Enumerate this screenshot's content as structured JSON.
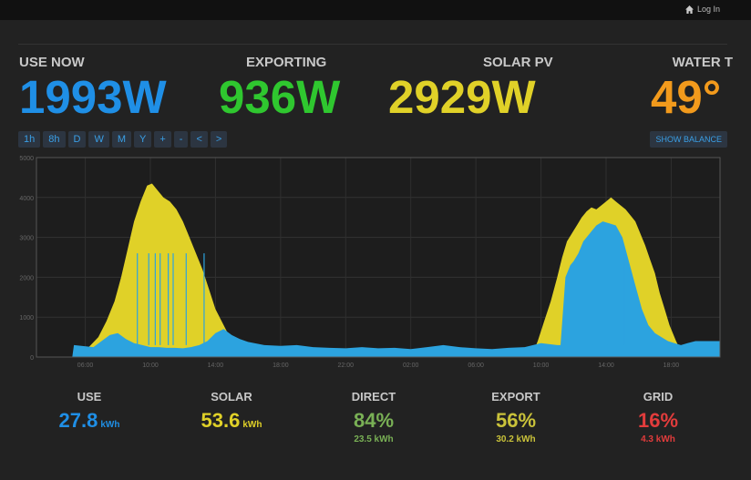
{
  "header": {
    "login_label": "Log In"
  },
  "stats": [
    {
      "label": "USE NOW",
      "value": "1993W",
      "color": "#1f8fe6"
    },
    {
      "label": "EXPORTING",
      "value": "936W",
      "color": "#2fc72f"
    },
    {
      "label": "SOLAR PV",
      "value": "2929W",
      "color": "#e0d128"
    },
    {
      "label": "WATER T",
      "value": "49°",
      "color": "#f29a1c"
    }
  ],
  "toolbar": {
    "buttons": [
      "1h",
      "8h",
      "D",
      "W",
      "M",
      "Y",
      "+",
      "-",
      "<",
      ">"
    ],
    "show_balance": "SHOW BALANCE"
  },
  "chart_data": {
    "type": "area",
    "ylim": [
      0,
      5000
    ],
    "yticks": [
      "0",
      "1000",
      "2000",
      "3000",
      "4000",
      "5000"
    ],
    "xticks": [
      "06:00",
      "10:00",
      "14:00",
      "18:00",
      "22:00",
      "02:00",
      "06:00",
      "10:00",
      "14:00",
      "18:00"
    ],
    "series": [
      {
        "color": "#e0d128",
        "points": [
          [
            0.0,
            0
          ],
          [
            2.4,
            0
          ],
          [
            3.1,
            200
          ],
          [
            3.8,
            500
          ],
          [
            4.3,
            900
          ],
          [
            4.8,
            1400
          ],
          [
            5.2,
            2000
          ],
          [
            5.6,
            2700
          ],
          [
            6.0,
            3400
          ],
          [
            6.4,
            3900
          ],
          [
            6.8,
            4300
          ],
          [
            7.1,
            4350
          ],
          [
            7.4,
            4200
          ],
          [
            7.8,
            4000
          ],
          [
            8.2,
            3900
          ],
          [
            8.6,
            3700
          ],
          [
            9.0,
            3400
          ],
          [
            9.4,
            3000
          ],
          [
            9.8,
            2600
          ],
          [
            10.2,
            2200
          ],
          [
            10.6,
            1700
          ],
          [
            11.0,
            1200
          ],
          [
            11.5,
            800
          ],
          [
            12.0,
            400
          ],
          [
            12.5,
            250
          ],
          [
            13.0,
            0
          ],
          [
            30.4,
            0
          ],
          [
            30.8,
            400
          ],
          [
            31.2,
            900
          ],
          [
            31.6,
            1400
          ],
          [
            32.0,
            2000
          ],
          [
            32.3,
            2500
          ],
          [
            32.6,
            2900
          ],
          [
            32.9,
            3100
          ],
          [
            33.2,
            3300
          ],
          [
            33.5,
            3500
          ],
          [
            33.8,
            3650
          ],
          [
            34.1,
            3750
          ],
          [
            34.4,
            3700
          ],
          [
            34.7,
            3800
          ],
          [
            35.0,
            3900
          ],
          [
            35.3,
            4000
          ],
          [
            35.6,
            3900
          ],
          [
            35.9,
            3800
          ],
          [
            36.2,
            3700
          ],
          [
            36.5,
            3550
          ],
          [
            36.8,
            3400
          ],
          [
            37.1,
            3100
          ],
          [
            37.4,
            2800
          ],
          [
            37.7,
            2450
          ],
          [
            38.0,
            2100
          ],
          [
            38.3,
            1600
          ],
          [
            38.6,
            1200
          ],
          [
            38.9,
            800
          ],
          [
            39.3,
            400
          ],
          [
            39.6,
            150
          ],
          [
            40.0,
            0
          ],
          [
            42.0,
            0
          ]
        ]
      },
      {
        "color": "#2ca3df",
        "points": [
          [
            0.0,
            0
          ],
          [
            2.2,
            0
          ],
          [
            2.3,
            300
          ],
          [
            3.5,
            250
          ],
          [
            4.0,
            400
          ],
          [
            4.5,
            550
          ],
          [
            5.0,
            600
          ],
          [
            5.5,
            450
          ],
          [
            6.0,
            350
          ],
          [
            6.5,
            300
          ],
          [
            7.0,
            250
          ],
          [
            7.5,
            250
          ],
          [
            8.0,
            230
          ],
          [
            8.5,
            230
          ],
          [
            9.0,
            220
          ],
          [
            9.5,
            250
          ],
          [
            10.0,
            300
          ],
          [
            10.5,
            400
          ],
          [
            11.0,
            600
          ],
          [
            11.5,
            700
          ],
          [
            12.0,
            550
          ],
          [
            12.5,
            450
          ],
          [
            13.0,
            380
          ],
          [
            14.0,
            300
          ],
          [
            15.0,
            280
          ],
          [
            16.0,
            300
          ],
          [
            17.0,
            250
          ],
          [
            18.0,
            230
          ],
          [
            19.0,
            220
          ],
          [
            20.0,
            250
          ],
          [
            21.0,
            220
          ],
          [
            22.0,
            230
          ],
          [
            23.0,
            200
          ],
          [
            24.0,
            250
          ],
          [
            25.0,
            300
          ],
          [
            26.0,
            250
          ],
          [
            27.0,
            220
          ],
          [
            28.0,
            200
          ],
          [
            29.0,
            230
          ],
          [
            30.0,
            250
          ],
          [
            31.0,
            350
          ],
          [
            32.0,
            300
          ],
          [
            32.2,
            300
          ],
          [
            32.5,
            2000
          ],
          [
            32.8,
            2300
          ],
          [
            33.0,
            2400
          ],
          [
            33.3,
            2600
          ],
          [
            33.6,
            2900
          ],
          [
            34.0,
            3100
          ],
          [
            34.4,
            3300
          ],
          [
            34.8,
            3400
          ],
          [
            35.2,
            3350
          ],
          [
            35.6,
            3300
          ],
          [
            36.0,
            3000
          ],
          [
            36.4,
            2400
          ],
          [
            36.8,
            1800
          ],
          [
            37.2,
            1200
          ],
          [
            37.6,
            800
          ],
          [
            38.0,
            600
          ],
          [
            38.4,
            500
          ],
          [
            38.8,
            400
          ],
          [
            39.2,
            350
          ],
          [
            39.6,
            300
          ],
          [
            40.0,
            350
          ],
          [
            40.5,
            400
          ],
          [
            41.0,
            400
          ],
          [
            42.0,
            400
          ]
        ]
      }
    ]
  },
  "bottom": [
    {
      "label": "USE",
      "value": "27.8",
      "unit": "kWh",
      "sub": "",
      "color": "#1f8fe6"
    },
    {
      "label": "SOLAR",
      "value": "53.6",
      "unit": "kWh",
      "sub": "",
      "color": "#e0d128"
    },
    {
      "label": "DIRECT",
      "value": "84%",
      "unit": "",
      "sub": "23.5 kWh",
      "color": "#79b055"
    },
    {
      "label": "EXPORT",
      "value": "56%",
      "unit": "",
      "sub": "30.2 kWh",
      "color": "#c9c23a"
    },
    {
      "label": "GRID",
      "value": "16%",
      "unit": "",
      "sub": "4.3 kWh",
      "color": "#e23c3c"
    }
  ]
}
